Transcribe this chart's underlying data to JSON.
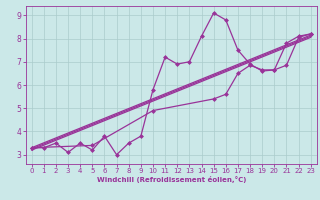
{
  "background_color": "#cbe8e8",
  "line_color": "#993399",
  "grid_color": "#aacccc",
  "xlabel": "Windchill (Refroidissement éolien,°C)",
  "xlabel_color": "#993399",
  "ylabel_color": "#993399",
  "xlim": [
    -0.5,
    23.5
  ],
  "ylim": [
    2.6,
    9.4
  ],
  "yticks": [
    3,
    4,
    5,
    6,
    7,
    8,
    9
  ],
  "xticks": [
    0,
    1,
    2,
    3,
    4,
    5,
    6,
    7,
    8,
    9,
    10,
    11,
    12,
    13,
    14,
    15,
    16,
    17,
    18,
    19,
    20,
    21,
    22,
    23
  ],
  "wavy_x": [
    0,
    1,
    2,
    3,
    4,
    5,
    6,
    7,
    8,
    9,
    10,
    11,
    12,
    13,
    14,
    15,
    16,
    17,
    18,
    19,
    20,
    21,
    22,
    23
  ],
  "wavy_y": [
    3.3,
    3.3,
    3.5,
    3.1,
    3.5,
    3.2,
    3.8,
    3.0,
    3.5,
    3.8,
    5.8,
    7.2,
    6.9,
    7.0,
    8.1,
    9.1,
    8.8,
    7.5,
    6.9,
    6.6,
    6.65,
    7.8,
    8.1,
    8.2
  ],
  "line1_x": [
    0,
    5,
    10,
    15,
    16,
    17,
    18,
    19,
    20,
    21,
    22,
    23
  ],
  "line1_y": [
    3.3,
    3.4,
    4.9,
    5.4,
    5.6,
    6.5,
    6.85,
    6.65,
    6.65,
    6.85,
    8.05,
    8.2
  ],
  "line2_x": [
    0,
    23
  ],
  "line2_y": [
    3.3,
    8.15
  ],
  "line3_x": [
    0,
    23
  ],
  "line3_y": [
    3.25,
    8.1
  ],
  "line4_x": [
    0,
    23
  ],
  "line4_y": [
    3.2,
    8.05
  ]
}
